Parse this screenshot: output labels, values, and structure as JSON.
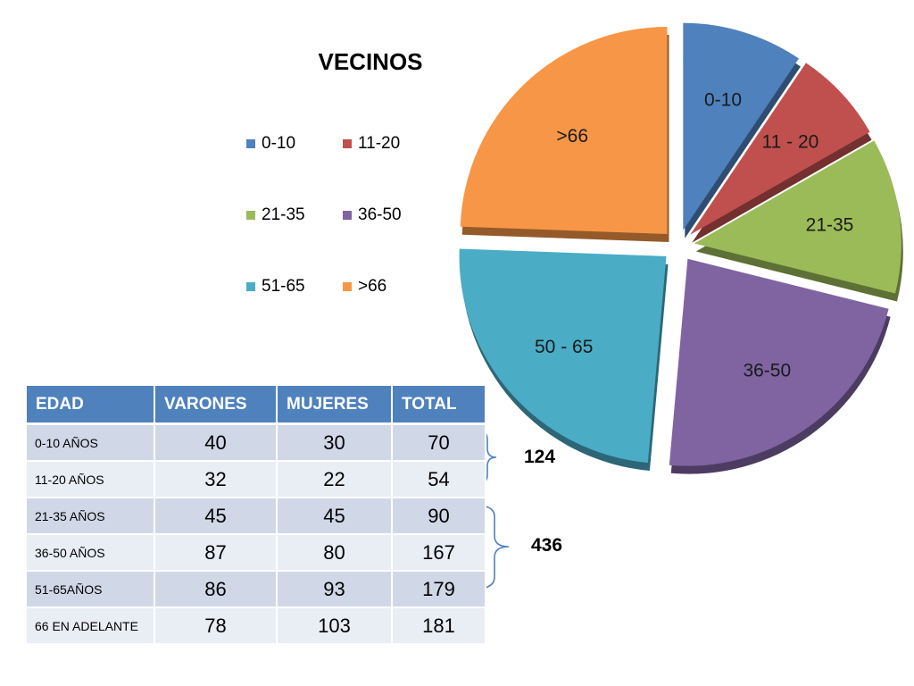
{
  "chart_data": {
    "type": "pie",
    "title": "VECINOS",
    "categories": [
      "0-10",
      "11-20",
      "21-35",
      "36-50",
      "51-65",
      ">66"
    ],
    "slice_labels": [
      "0-10",
      "11 - 20",
      "21-35",
      "36-50",
      "50 - 65",
      ">66"
    ],
    "values": [
      70,
      54,
      90,
      167,
      179,
      181
    ],
    "colors": [
      "#4f81bd",
      "#c0504d",
      "#9bbb59",
      "#8064a2",
      "#4bacc6",
      "#f79646"
    ],
    "legend_position": "left",
    "exploded": true
  },
  "table": {
    "headers": [
      "EDAD",
      "VARONES",
      "MUJERES",
      "TOTAL"
    ],
    "rows": [
      [
        "0-10 AÑOS",
        "40",
        "30",
        "70"
      ],
      [
        "11-20 AÑOS",
        "32",
        "22",
        "54"
      ],
      [
        "21-35 AÑOS",
        "45",
        "45",
        "90"
      ],
      [
        "36-50 AÑOS",
        "87",
        "80",
        "167"
      ],
      [
        "51-65AÑOS",
        "86",
        "93",
        "179"
      ],
      [
        "66 EN ADELANTE",
        "78",
        "103",
        "181"
      ]
    ]
  },
  "groups": [
    {
      "total": "124"
    },
    {
      "total": "436"
    }
  ]
}
